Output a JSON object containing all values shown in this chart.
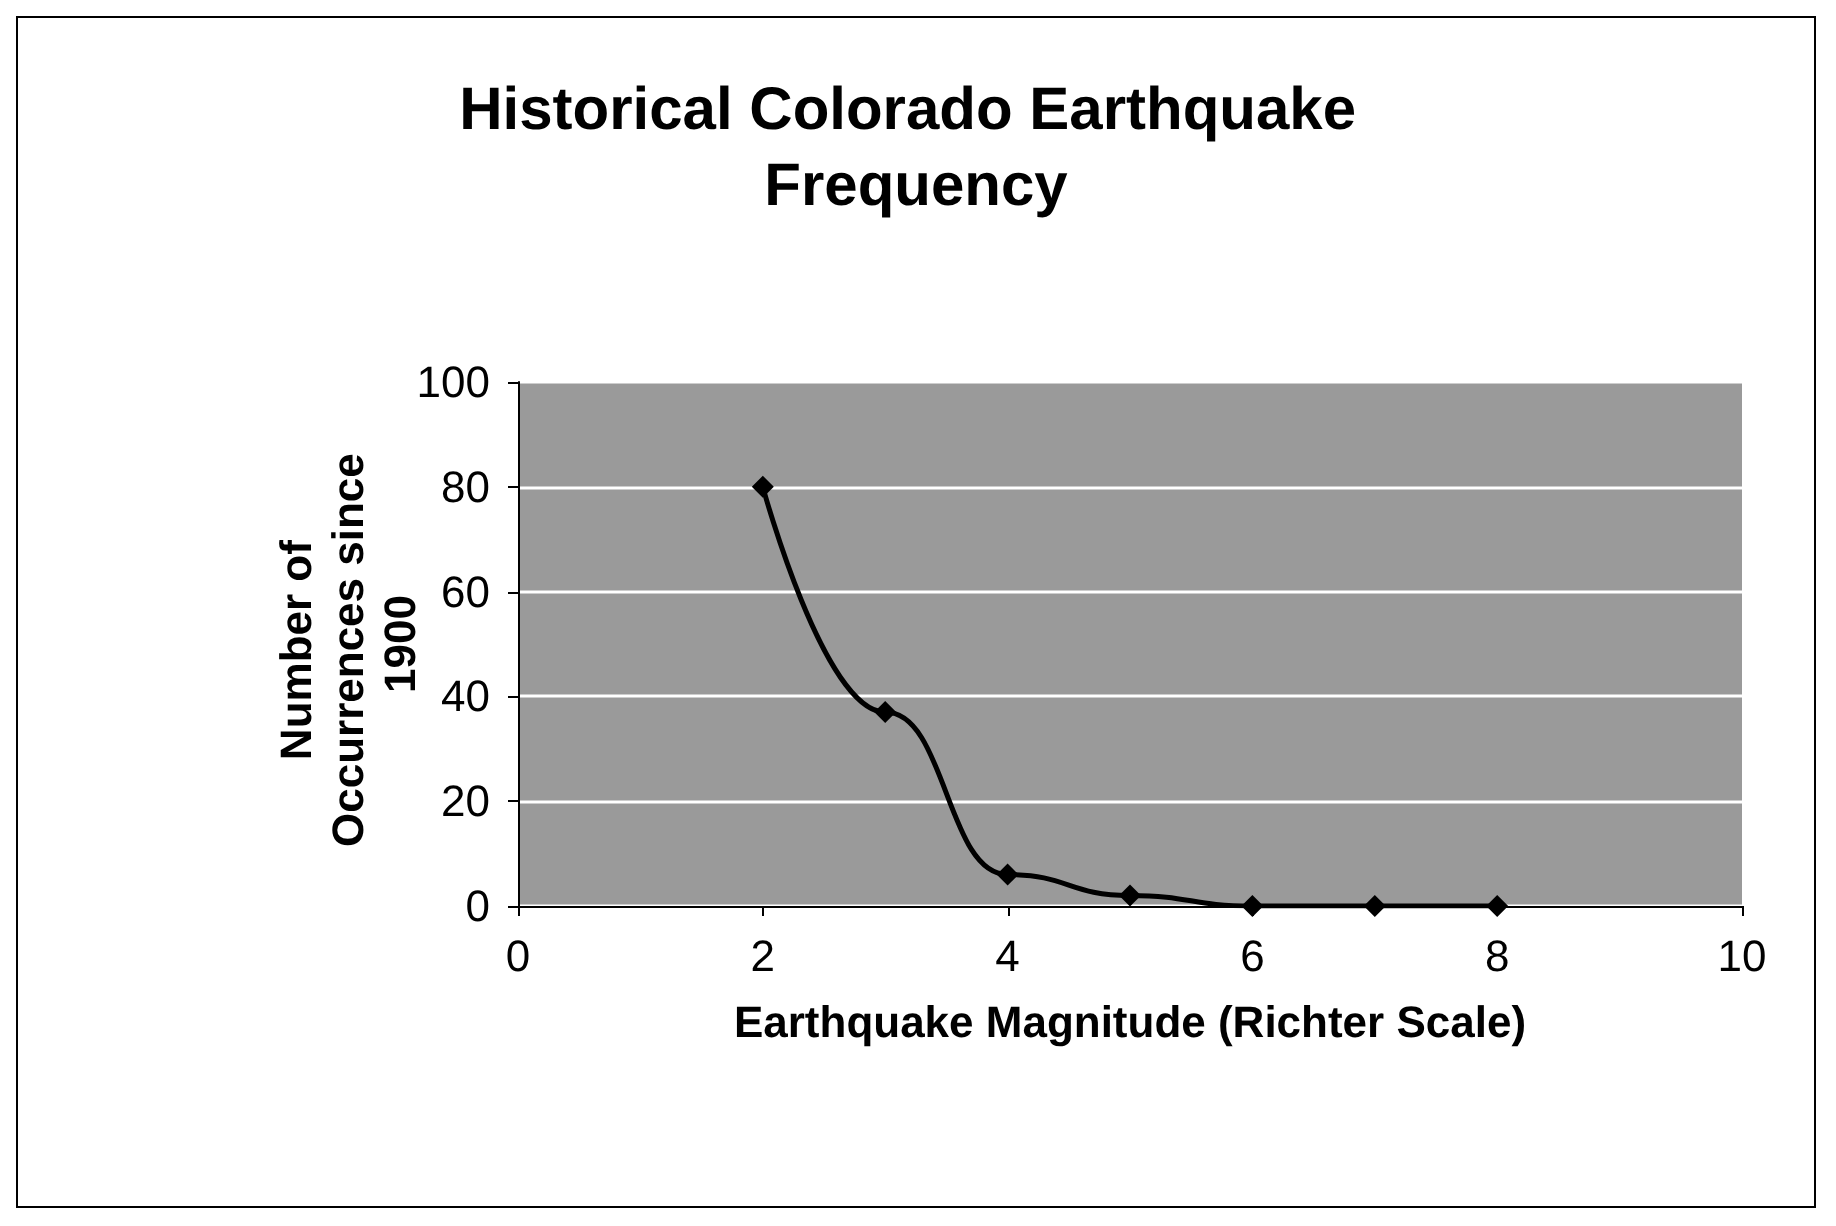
{
  "chart_data": {
    "type": "line",
    "title": "Historical Colorado Earthquake Frequency",
    "xlabel": "Earthquake Magnitude (Richter Scale)",
    "ylabel": "Number of Occurrences since 1900",
    "x": [
      2,
      3,
      4,
      5,
      6,
      7,
      8
    ],
    "series": [
      {
        "color": "#000000",
        "values": [
          80,
          37,
          6,
          2,
          0,
          0,
          0
        ]
      }
    ],
    "xlim": [
      0,
      10
    ],
    "xticks": [
      0,
      2,
      4,
      6,
      8,
      10
    ],
    "ylim": [
      0,
      100
    ],
    "yticks": [
      0,
      20,
      40,
      60,
      80,
      100
    ],
    "grid": "y",
    "marker": "diamond",
    "line_style": "solid"
  }
}
